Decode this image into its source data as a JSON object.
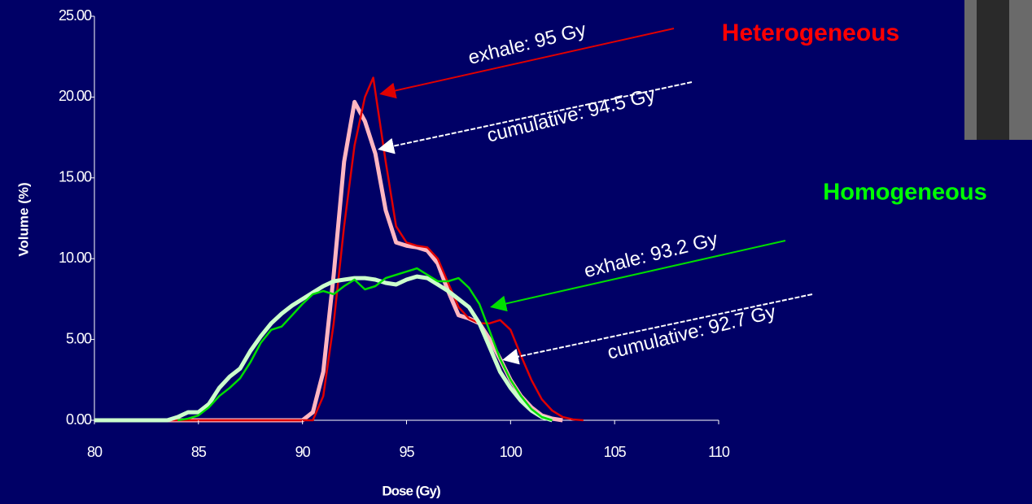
{
  "chart_data": {
    "type": "line",
    "x_label": "Dose (Gy)",
    "y_label": "Volume (%)",
    "xlim": [
      80,
      110
    ],
    "xticks": [
      80,
      85,
      90,
      95,
      100,
      105,
      110
    ],
    "ylim": [
      0,
      25
    ],
    "yticks": [
      {
        "value": 0,
        "label": "0.00"
      },
      {
        "value": 5,
        "label": "5.00"
      },
      {
        "value": 10,
        "label": "10.00"
      },
      {
        "value": 15,
        "label": "15.00"
      },
      {
        "value": 20,
        "label": "20.00"
      },
      {
        "value": 25,
        "label": "25.00"
      }
    ],
    "series": [
      {
        "color": "#ffb6c1",
        "width": 5,
        "x": [
          80,
          90,
          90.5,
          91,
          91.5,
          92,
          92.5,
          93,
          93.5,
          94,
          94.5,
          95,
          95.5,
          96,
          96.5,
          97,
          97.5,
          98,
          98.5,
          99,
          99.5,
          100,
          100.5,
          101,
          101.5,
          102,
          102.5
        ],
        "values": [
          0,
          0,
          0.5,
          3,
          9,
          16,
          19.7,
          18.5,
          16.5,
          13,
          11,
          10.8,
          10.7,
          10.5,
          9.7,
          8,
          6.5,
          6.3,
          6,
          5,
          3.8,
          2.5,
          1.5,
          0.8,
          0.3,
          0.1,
          0
        ]
      },
      {
        "color": "#e00000",
        "width": 2.5,
        "x": [
          80,
          90.5,
          91,
          91.5,
          92,
          92.5,
          93,
          93.4,
          94,
          94.5,
          95,
          95.5,
          96,
          96.5,
          97,
          97.5,
          98,
          98.5,
          99,
          99.5,
          100,
          100.5,
          101,
          101.5,
          102,
          102.5,
          103,
          103.5
        ],
        "values": [
          0,
          0,
          1.5,
          6,
          12,
          17,
          20,
          21.2,
          16,
          12,
          11,
          10.8,
          10.7,
          10,
          8.5,
          7,
          6.3,
          6,
          6,
          6.2,
          5.6,
          4,
          2.5,
          1.3,
          0.6,
          0.2,
          0.05,
          0
        ]
      },
      {
        "color": "#ccffcc",
        "width": 5,
        "x": [
          80,
          83.5,
          84,
          84.5,
          85,
          85.5,
          86,
          86.5,
          87,
          87.5,
          88,
          88.5,
          89,
          89.5,
          90,
          90.5,
          91,
          91.5,
          92,
          92.5,
          93,
          93.5,
          94,
          94.5,
          95,
          95.5,
          96,
          96.5,
          97,
          97.5,
          98,
          98.5,
          99,
          99.5,
          100,
          100.5,
          101,
          101.5,
          102
        ],
        "values": [
          0,
          0,
          0.2,
          0.5,
          0.5,
          1,
          2,
          2.7,
          3.2,
          4.3,
          5.2,
          6,
          6.6,
          7.1,
          7.5,
          7.9,
          8.3,
          8.6,
          8.7,
          8.8,
          8.8,
          8.7,
          8.5,
          8.4,
          8.7,
          8.9,
          8.8,
          8.4,
          8,
          7.5,
          7,
          6,
          4.5,
          3,
          2,
          1.2,
          0.6,
          0.2,
          0
        ]
      },
      {
        "color": "#00dd00",
        "width": 2.5,
        "x": [
          84,
          84.5,
          85,
          85.5,
          86,
          86.5,
          87,
          87.5,
          88,
          88.5,
          89,
          89.5,
          90,
          90.5,
          91,
          91.5,
          92,
          92.5,
          93,
          93.5,
          94,
          94.5,
          95,
          95.5,
          96,
          96.5,
          97,
          97.5,
          98,
          98.5,
          99,
          99.5,
          100,
          100.5,
          101,
          101.5,
          102
        ],
        "values": [
          0,
          0.1,
          0.3,
          0.8,
          1.5,
          2,
          2.6,
          3.6,
          4.8,
          5.6,
          5.8,
          6.5,
          7.2,
          7.8,
          8,
          7.8,
          8.3,
          8.7,
          8.1,
          8.3,
          8.8,
          9,
          9.2,
          9.4,
          9,
          8.6,
          8.6,
          8.8,
          8.2,
          7.2,
          5.5,
          3.8,
          2.5,
          1.5,
          0.7,
          0.2,
          0
        ]
      }
    ],
    "annotations": [
      {
        "text": "exhale: 95 Gy",
        "color": "#ffffff"
      },
      {
        "text": "cumulative: 94.5 Gy",
        "color": "#ffffff"
      },
      {
        "text": "exhale: 93.2 Gy",
        "color": "#ffffff"
      },
      {
        "text": "cumulative: 92.7 Gy",
        "color": "#ffffff"
      },
      {
        "text": "Heterogeneous",
        "color": "#ff0000"
      },
      {
        "text": "Homogeneous",
        "color": "#00ff00"
      }
    ]
  }
}
